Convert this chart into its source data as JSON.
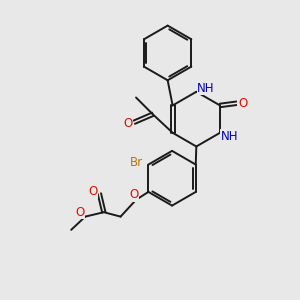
{
  "bg_color": "#e8e8e8",
  "bond_color": "#1a1a1a",
  "bond_width": 1.4,
  "atom_colors": {
    "O": "#dd1100",
    "N": "#0000cc",
    "Br": "#bb7700",
    "C": "#1a1a1a"
  },
  "font_size": 8.5
}
